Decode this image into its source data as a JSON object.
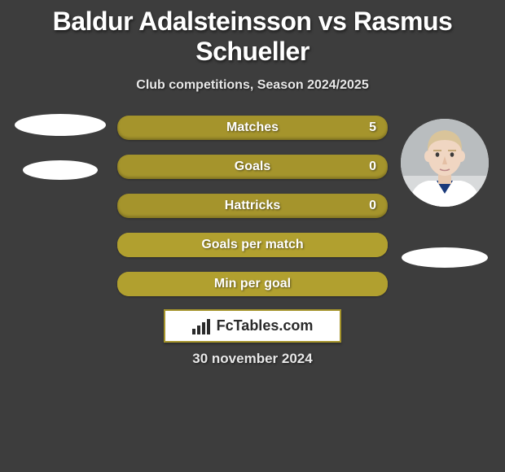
{
  "title": "Baldur Adalsteinsson vs Rasmus Schueller",
  "subtitle": "Club competitions, Season 2024/2025",
  "date": "30 november 2024",
  "logo_text": "FcTables.com",
  "bars": [
    {
      "label": "Matches",
      "left": "",
      "right": "5",
      "fill_pct": 0
    },
    {
      "label": "Goals",
      "left": "",
      "right": "0",
      "fill_pct": 0
    },
    {
      "label": "Hattricks",
      "left": "",
      "right": "0",
      "fill_pct": 0
    },
    {
      "label": "Goals per match",
      "left": "",
      "right": "",
      "fill_pct": 100
    },
    {
      "label": "Min per goal",
      "left": "",
      "right": "",
      "fill_pct": 100
    }
  ],
  "colors": {
    "bg": "#3d3d3d",
    "bar_base": "#a5942c",
    "bar_fill": "#b1a02f",
    "logo_border": "#a5942c"
  },
  "player_right_face": {
    "skin": "#f0d6c2",
    "hair": "#d9c49a",
    "shirt": "#ffffff",
    "shirt_trim": "#1a3a7a"
  }
}
